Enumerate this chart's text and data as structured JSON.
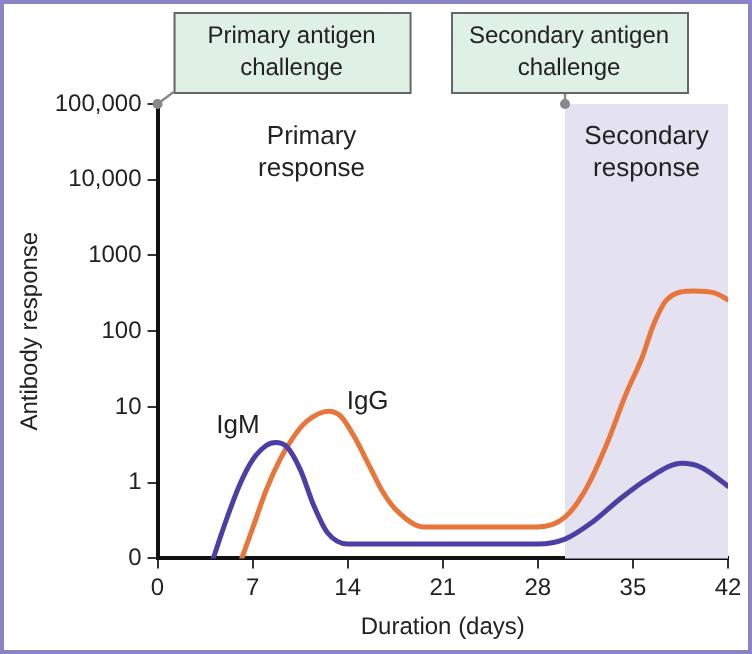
{
  "chart_data": {
    "type": "line",
    "xlabel": "Duration (days)",
    "ylabel": "Antibody response",
    "log": "y",
    "xlim": [
      0,
      42
    ],
    "xticks": [
      0,
      7,
      14,
      21,
      28,
      35,
      42
    ],
    "ylim": [
      0.1,
      100000
    ],
    "yticks": [
      {
        "value": 0.1,
        "label": "0"
      },
      1,
      10,
      100,
      1000,
      {
        "value": 10000,
        "label": "10,000"
      },
      {
        "value": 100000,
        "label": "100,000"
      }
    ],
    "grid": false,
    "legend": false,
    "marker": "none",
    "line_style": "solid",
    "series": [
      {
        "name": "IgM",
        "color": "#4b3fa6",
        "x": [
          4.1,
          5,
          6,
          7,
          8,
          8.7,
          9.5,
          10.5,
          11.5,
          12.5,
          14,
          21,
          28,
          30,
          32,
          34,
          36,
          38.6,
          40,
          42
        ],
        "values": [
          0.1,
          0.3,
          0.9,
          2,
          3.1,
          3.4,
          3,
          1.5,
          0.5,
          0.22,
          0.155,
          0.155,
          0.155,
          0.18,
          0.3,
          0.6,
          1.1,
          1.8,
          1.6,
          0.9
        ]
      },
      {
        "name": "IgG",
        "color": "#e8763a",
        "x": [
          6.2,
          7,
          8,
          9,
          10,
          11,
          12.6,
          13.5,
          14.5,
          15.5,
          16.5,
          17.5,
          19.6,
          28,
          30,
          31.5,
          33,
          34.5,
          35.7,
          36.5,
          37.5,
          39.5,
          41,
          42
        ],
        "values": [
          0.1,
          0.25,
          0.8,
          2,
          4,
          6.5,
          8.8,
          7.5,
          4,
          1.8,
          0.8,
          0.45,
          0.26,
          0.26,
          0.35,
          0.8,
          3,
          15,
          46,
          120,
          260,
          340,
          320,
          260
        ]
      }
    ],
    "bands": [
      {
        "axis": "x",
        "from": 30,
        "to": 42,
        "label": "Secondary response",
        "color": "#e4e2f1"
      }
    ],
    "annotations": [
      {
        "text": "Primary antigen challenge",
        "x": 0,
        "y": 100000
      },
      {
        "text": "Secondary antigen challenge",
        "x": 30,
        "y": 100000
      },
      "Primary response"
    ]
  }
}
